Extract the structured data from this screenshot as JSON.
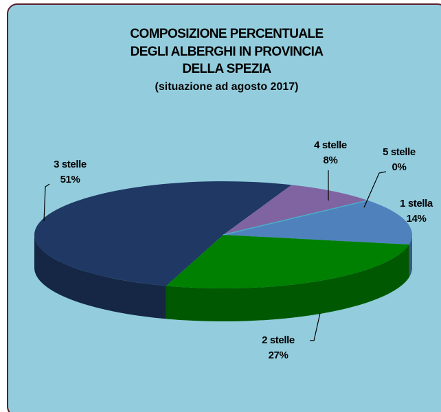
{
  "chart_data": {
    "type": "pie3d",
    "title": [
      "COMPOSIZIONE PERCENTUALE",
      "DEGLI ALBERGHI IN PROVINCIA",
      "DELLA SPEZIA"
    ],
    "subtitle": "(situazione ad agosto 2017)",
    "categories": [
      "1 stella",
      "2 stelle",
      "3 stelle",
      "4 stelle",
      "5 stelle"
    ],
    "values": [
      14,
      27,
      51,
      8,
      0
    ],
    "value_labels": [
      "14%",
      "27%",
      "51%",
      "8%",
      "0%"
    ],
    "colors": [
      "#4f81bd",
      "#008000",
      "#1f3864",
      "#8064a2",
      "#4bacc6"
    ]
  }
}
